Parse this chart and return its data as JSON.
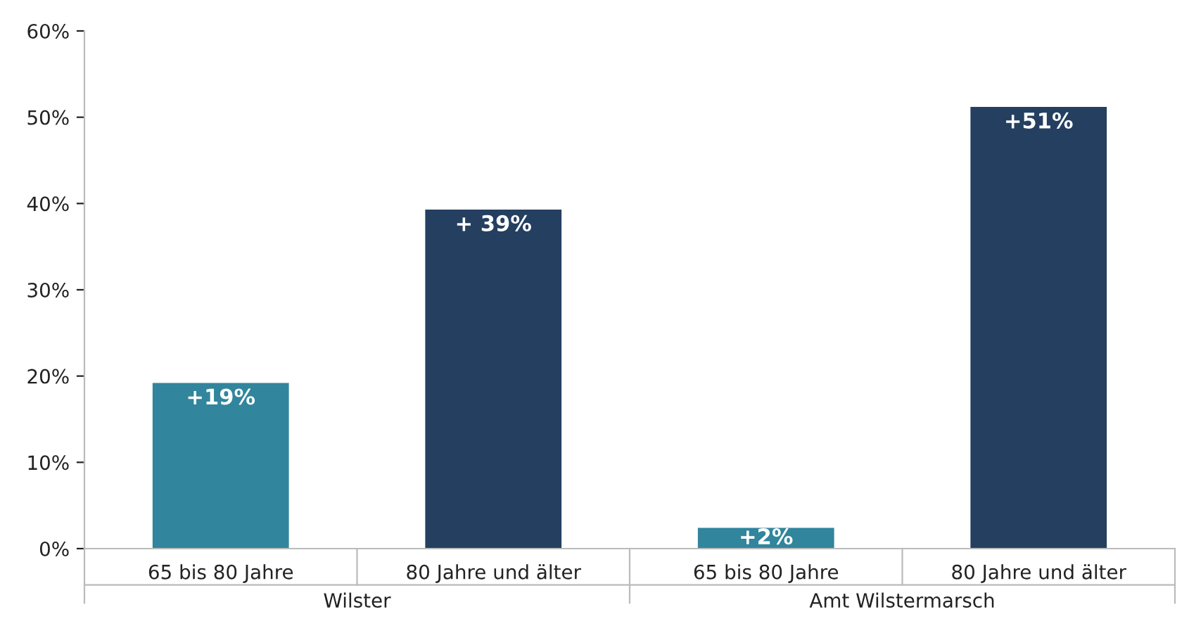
{
  "chart_data": {
    "type": "bar",
    "categories": [
      "65 bis 80 Jahre",
      "80 Jahre und älter",
      "65 bis 80 Jahre",
      "80 Jahre und älter"
    ],
    "values": [
      19.2,
      39.3,
      2.4,
      51.2
    ],
    "colors": [
      "#31859c",
      "#243f60",
      "#31859c",
      "#243f60"
    ],
    "value_labels": [
      "+19%",
      "+ 39%",
      "+2%",
      "+51%"
    ],
    "annotations": [
      "Wilster",
      "Amt Wilstermarsch"
    ],
    "ylim": [
      0,
      60
    ],
    "yticks": [
      {
        "value": 0,
        "label": "0%"
      },
      {
        "value": 10,
        "label": "10%"
      },
      {
        "value": 20,
        "label": "20%"
      },
      {
        "value": 30,
        "label": "30%"
      },
      {
        "value": 40,
        "label": "40%"
      },
      {
        "value": 50,
        "label": "50%"
      },
      {
        "value": 60,
        "label": "60%"
      }
    ],
    "grid": false
  }
}
